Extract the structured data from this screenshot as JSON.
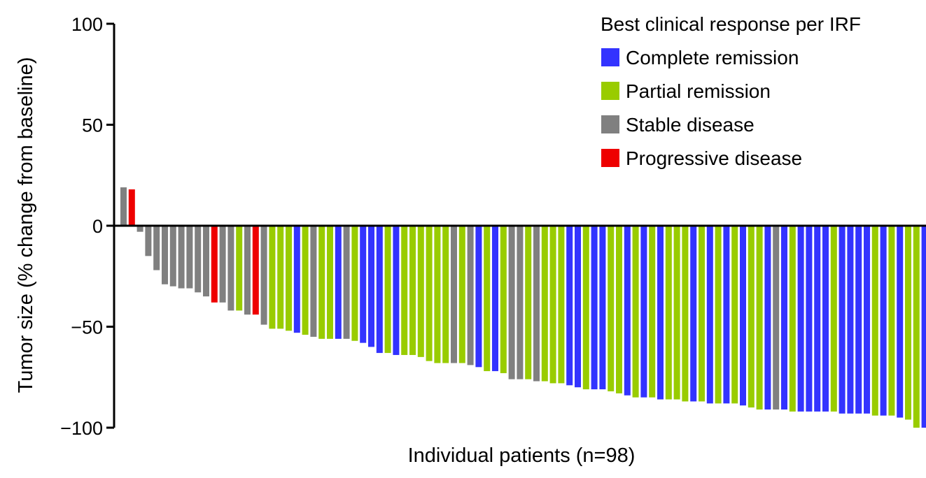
{
  "chart_data": {
    "type": "bar",
    "title": "",
    "xlabel": "Individual patients (n=98)",
    "ylabel": "Tumor size (% change from baseline)",
    "ylim": [
      -100,
      100
    ],
    "yticks": [
      100,
      50,
      0,
      -50,
      -100
    ],
    "ytick_labels": [
      "100",
      "50",
      "0",
      "−50",
      "−100"
    ],
    "grid": false,
    "legend": {
      "position": "top-right",
      "title": "Best clinical response per IRF",
      "entries": [
        {
          "key": "CR",
          "label": "Complete remission",
          "color": "#3333ff"
        },
        {
          "key": "PR",
          "label": "Partial remission",
          "color": "#99cc00"
        },
        {
          "key": "SD",
          "label": "Stable disease",
          "color": "#808080"
        },
        {
          "key": "PD",
          "label": "Progressive disease",
          "color": "#ee0000"
        }
      ]
    },
    "values": [
      19,
      18,
      -3,
      -15,
      -22,
      -29,
      -30,
      -31,
      -31,
      -33,
      -35,
      -38,
      -38,
      -42,
      -42,
      -44,
      -44,
      -49,
      -51,
      -51,
      -52,
      -53,
      -54,
      -55,
      -56,
      -56,
      -56,
      -56,
      -57,
      -58,
      -60,
      -63,
      -63,
      -64,
      -64,
      -64,
      -65,
      -67,
      -68,
      -68,
      -68,
      -68,
      -69,
      -70,
      -72,
      -72,
      -73,
      -76,
      -76,
      -76,
      -77,
      -77,
      -78,
      -78,
      -79,
      -80,
      -81,
      -81,
      -81,
      -82,
      -83,
      -84,
      -85,
      -85,
      -85,
      -86,
      -86,
      -86,
      -87,
      -87,
      -87,
      -88,
      -88,
      -88,
      -88,
      -89,
      -90,
      -91,
      -91,
      -91,
      -91,
      -92,
      -92,
      -92,
      -92,
      -92,
      -92,
      -93,
      -93,
      -93,
      -93,
      -94,
      -94,
      -94,
      -95,
      -96,
      -100,
      -100
    ],
    "responses": [
      "SD",
      "PD",
      "SD",
      "SD",
      "SD",
      "SD",
      "SD",
      "SD",
      "SD",
      "SD",
      "SD",
      "PD",
      "SD",
      "SD",
      "PR",
      "SD",
      "PD",
      "SD",
      "PR",
      "PR",
      "PR",
      "CR",
      "PR",
      "SD",
      "PR",
      "PR",
      "CR",
      "SD",
      "PR",
      "CR",
      "CR",
      "CR",
      "PR",
      "CR",
      "PR",
      "PR",
      "PR",
      "PR",
      "PR",
      "PR",
      "SD",
      "PR",
      "SD",
      "CR",
      "PR",
      "CR",
      "PR",
      "SD",
      "SD",
      "PR",
      "SD",
      "PR",
      "PR",
      "PR",
      "CR",
      "CR",
      "PR",
      "CR",
      "CR",
      "PR",
      "PR",
      "CR",
      "PR",
      "CR",
      "PR",
      "CR",
      "PR",
      "PR",
      "PR",
      "CR",
      "PR",
      "CR",
      "PR",
      "CR",
      "PR",
      "CR",
      "PR",
      "PR",
      "CR",
      "SD",
      "CR",
      "PR",
      "CR",
      "CR",
      "CR",
      "CR",
      "PR",
      "CR",
      "CR",
      "CR",
      "CR",
      "PR",
      "CR",
      "PR",
      "CR",
      "PR",
      "PR",
      "CR"
    ]
  }
}
